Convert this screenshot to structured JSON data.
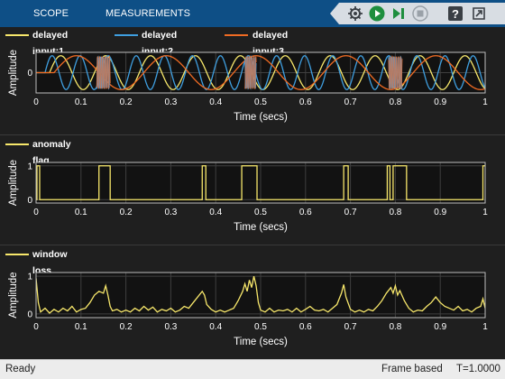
{
  "toolstrip": {
    "tabs": [
      {
        "label": "SCOPE"
      },
      {
        "label": "MEASUREMENTS"
      }
    ],
    "tools": [
      "layout-settings-icon",
      "run-icon",
      "step-forward-icon",
      "stop-icon",
      "help-icon",
      "expand-icon"
    ]
  },
  "colors": {
    "toolstrip": "#0e4f86",
    "yellow": "#f7e76b",
    "blue": "#3f9fe0",
    "orange": "#f06b23",
    "axes_bg": "#121212",
    "grid": "#3f3f3f"
  },
  "panels": [
    {
      "legend": [
        {
          "label": "delayed input:1",
          "color": "#f7e76b"
        },
        {
          "label": "delayed input:2",
          "color": "#3f9fe0"
        },
        {
          "label": "delayed input:3",
          "color": "#f06b23"
        }
      ],
      "chart_data": {
        "type": "line",
        "xlabel": "Time (secs)",
        "ylabel": "Amplitude",
        "xlim": [
          0,
          1
        ],
        "ylim": [
          -1.2,
          1.2
        ],
        "xticks": [
          "0",
          "0.1",
          "0.2",
          "0.3",
          "0.4",
          "0.5",
          "0.6",
          "0.7",
          "0.8",
          "0.9",
          "1"
        ],
        "yticks": [
          "0"
        ],
        "grid": true,
        "series": [
          {
            "name": "delayed input:1",
            "kind": "sine",
            "frequency_hz": 10,
            "delay_s": 0.03
          },
          {
            "name": "delayed input:2",
            "kind": "sine",
            "frequency_hz": 16,
            "delay_s": 0.02
          },
          {
            "name": "delayed input:3",
            "kind": "sine",
            "frequency_hz": 5,
            "delay_s": 0.04
          }
        ],
        "anomaly_bursts": [
          [
            0.135,
            0.165
          ],
          [
            0.465,
            0.49
          ],
          [
            0.785,
            0.815
          ]
        ]
      }
    },
    {
      "legend": [
        {
          "label": "anomaly flag",
          "color": "#f7e76b"
        }
      ],
      "chart_data": {
        "type": "line",
        "xlabel": "Time (secs)",
        "ylabel": "Amplitude",
        "xlim": [
          0,
          1
        ],
        "ylim": [
          -0.1,
          1.1
        ],
        "xticks": [
          "0",
          "0.1",
          "0.2",
          "0.3",
          "0.4",
          "0.5",
          "0.6",
          "0.7",
          "0.8",
          "0.9",
          "1"
        ],
        "yticks": [
          "0",
          "1"
        ],
        "grid": true,
        "series": [
          {
            "name": "anomaly flag",
            "x": [
              0,
              0.002,
              0.002,
              0.008,
              0.008,
              0.14,
              0.14,
              0.165,
              0.165,
              0.37,
              0.37,
              0.378,
              0.378,
              0.458,
              0.458,
              0.492,
              0.492,
              0.685,
              0.685,
              0.695,
              0.695,
              0.782,
              0.782,
              0.788,
              0.788,
              0.795,
              0.795,
              0.825,
              0.825,
              0.995,
              0.995,
              1.0
            ],
            "y": [
              0,
              0,
              1,
              1,
              0,
              0,
              1,
              1,
              0,
              0,
              1,
              1,
              0,
              0,
              1,
              1,
              0,
              0,
              1,
              1,
              0,
              0,
              1,
              1,
              0,
              0,
              1,
              1,
              0,
              0,
              1,
              1
            ]
          }
        ]
      }
    },
    {
      "legend": [
        {
          "label": "window loss",
          "color": "#f7e76b"
        }
      ],
      "chart_data": {
        "type": "line",
        "xlabel": "Time (secs)",
        "ylabel": "Amplitude",
        "xlim": [
          0,
          1
        ],
        "ylim": [
          -0.1,
          1.1
        ],
        "xticks": [
          "0",
          "0.1",
          "0.2",
          "0.3",
          "0.4",
          "0.5",
          "0.6",
          "0.7",
          "0.8",
          "0.9",
          "1"
        ],
        "yticks": [
          "0",
          "1"
        ],
        "grid": true,
        "series": [
          {
            "name": "window loss",
            "x": [
              0,
              0.005,
              0.01,
              0.02,
              0.03,
              0.04,
              0.05,
              0.06,
              0.07,
              0.08,
              0.09,
              0.1,
              0.11,
              0.12,
              0.13,
              0.14,
              0.15,
              0.155,
              0.16,
              0.165,
              0.17,
              0.18,
              0.19,
              0.2,
              0.21,
              0.22,
              0.23,
              0.24,
              0.25,
              0.26,
              0.27,
              0.28,
              0.29,
              0.3,
              0.31,
              0.32,
              0.33,
              0.34,
              0.35,
              0.36,
              0.37,
              0.375,
              0.38,
              0.39,
              0.4,
              0.41,
              0.42,
              0.43,
              0.44,
              0.45,
              0.46,
              0.465,
              0.47,
              0.475,
              0.48,
              0.485,
              0.49,
              0.495,
              0.5,
              0.51,
              0.52,
              0.53,
              0.54,
              0.55,
              0.56,
              0.57,
              0.58,
              0.59,
              0.6,
              0.61,
              0.62,
              0.63,
              0.64,
              0.65,
              0.66,
              0.67,
              0.68,
              0.685,
              0.69,
              0.7,
              0.71,
              0.72,
              0.73,
              0.74,
              0.75,
              0.76,
              0.77,
              0.78,
              0.79,
              0.795,
              0.8,
              0.805,
              0.81,
              0.82,
              0.83,
              0.84,
              0.85,
              0.86,
              0.87,
              0.88,
              0.89,
              0.9,
              0.91,
              0.92,
              0.93,
              0.94,
              0.95,
              0.96,
              0.97,
              0.98,
              0.99,
              0.995,
              1.0
            ],
            "y": [
              0.95,
              0.3,
              0.05,
              0.15,
              0.02,
              0.12,
              0.05,
              0.15,
              0.08,
              0.2,
              0.05,
              0.12,
              0.15,
              0.3,
              0.5,
              0.6,
              0.55,
              0.75,
              0.5,
              0.2,
              0.08,
              0.12,
              0.05,
              0.1,
              0.05,
              0.15,
              0.08,
              0.2,
              0.1,
              0.18,
              0.05,
              0.12,
              0.08,
              0.15,
              0.05,
              0.1,
              0.2,
              0.15,
              0.3,
              0.45,
              0.6,
              0.5,
              0.25,
              0.12,
              0.05,
              0.1,
              0.05,
              0.1,
              0.15,
              0.35,
              0.6,
              0.8,
              0.6,
              0.9,
              0.7,
              1.0,
              0.75,
              0.3,
              0.1,
              0.05,
              0.15,
              0.05,
              0.1,
              0.08,
              0.12,
              0.05,
              0.15,
              0.05,
              0.12,
              0.2,
              0.1,
              0.08,
              0.12,
              0.05,
              0.15,
              0.25,
              0.55,
              0.78,
              0.45,
              0.12,
              0.05,
              0.1,
              0.05,
              0.12,
              0.08,
              0.2,
              0.35,
              0.55,
              0.7,
              0.55,
              0.75,
              0.5,
              0.62,
              0.35,
              0.15,
              0.05,
              0.1,
              0.08,
              0.2,
              0.3,
              0.45,
              0.3,
              0.2,
              0.15,
              0.1,
              0.2,
              0.08,
              0.12,
              0.05,
              0.15,
              0.2,
              0.4,
              0.15
            ]
          }
        ]
      }
    }
  ],
  "status": {
    "left": "Ready",
    "mode": "Frame based",
    "time": "T=1.0000"
  }
}
